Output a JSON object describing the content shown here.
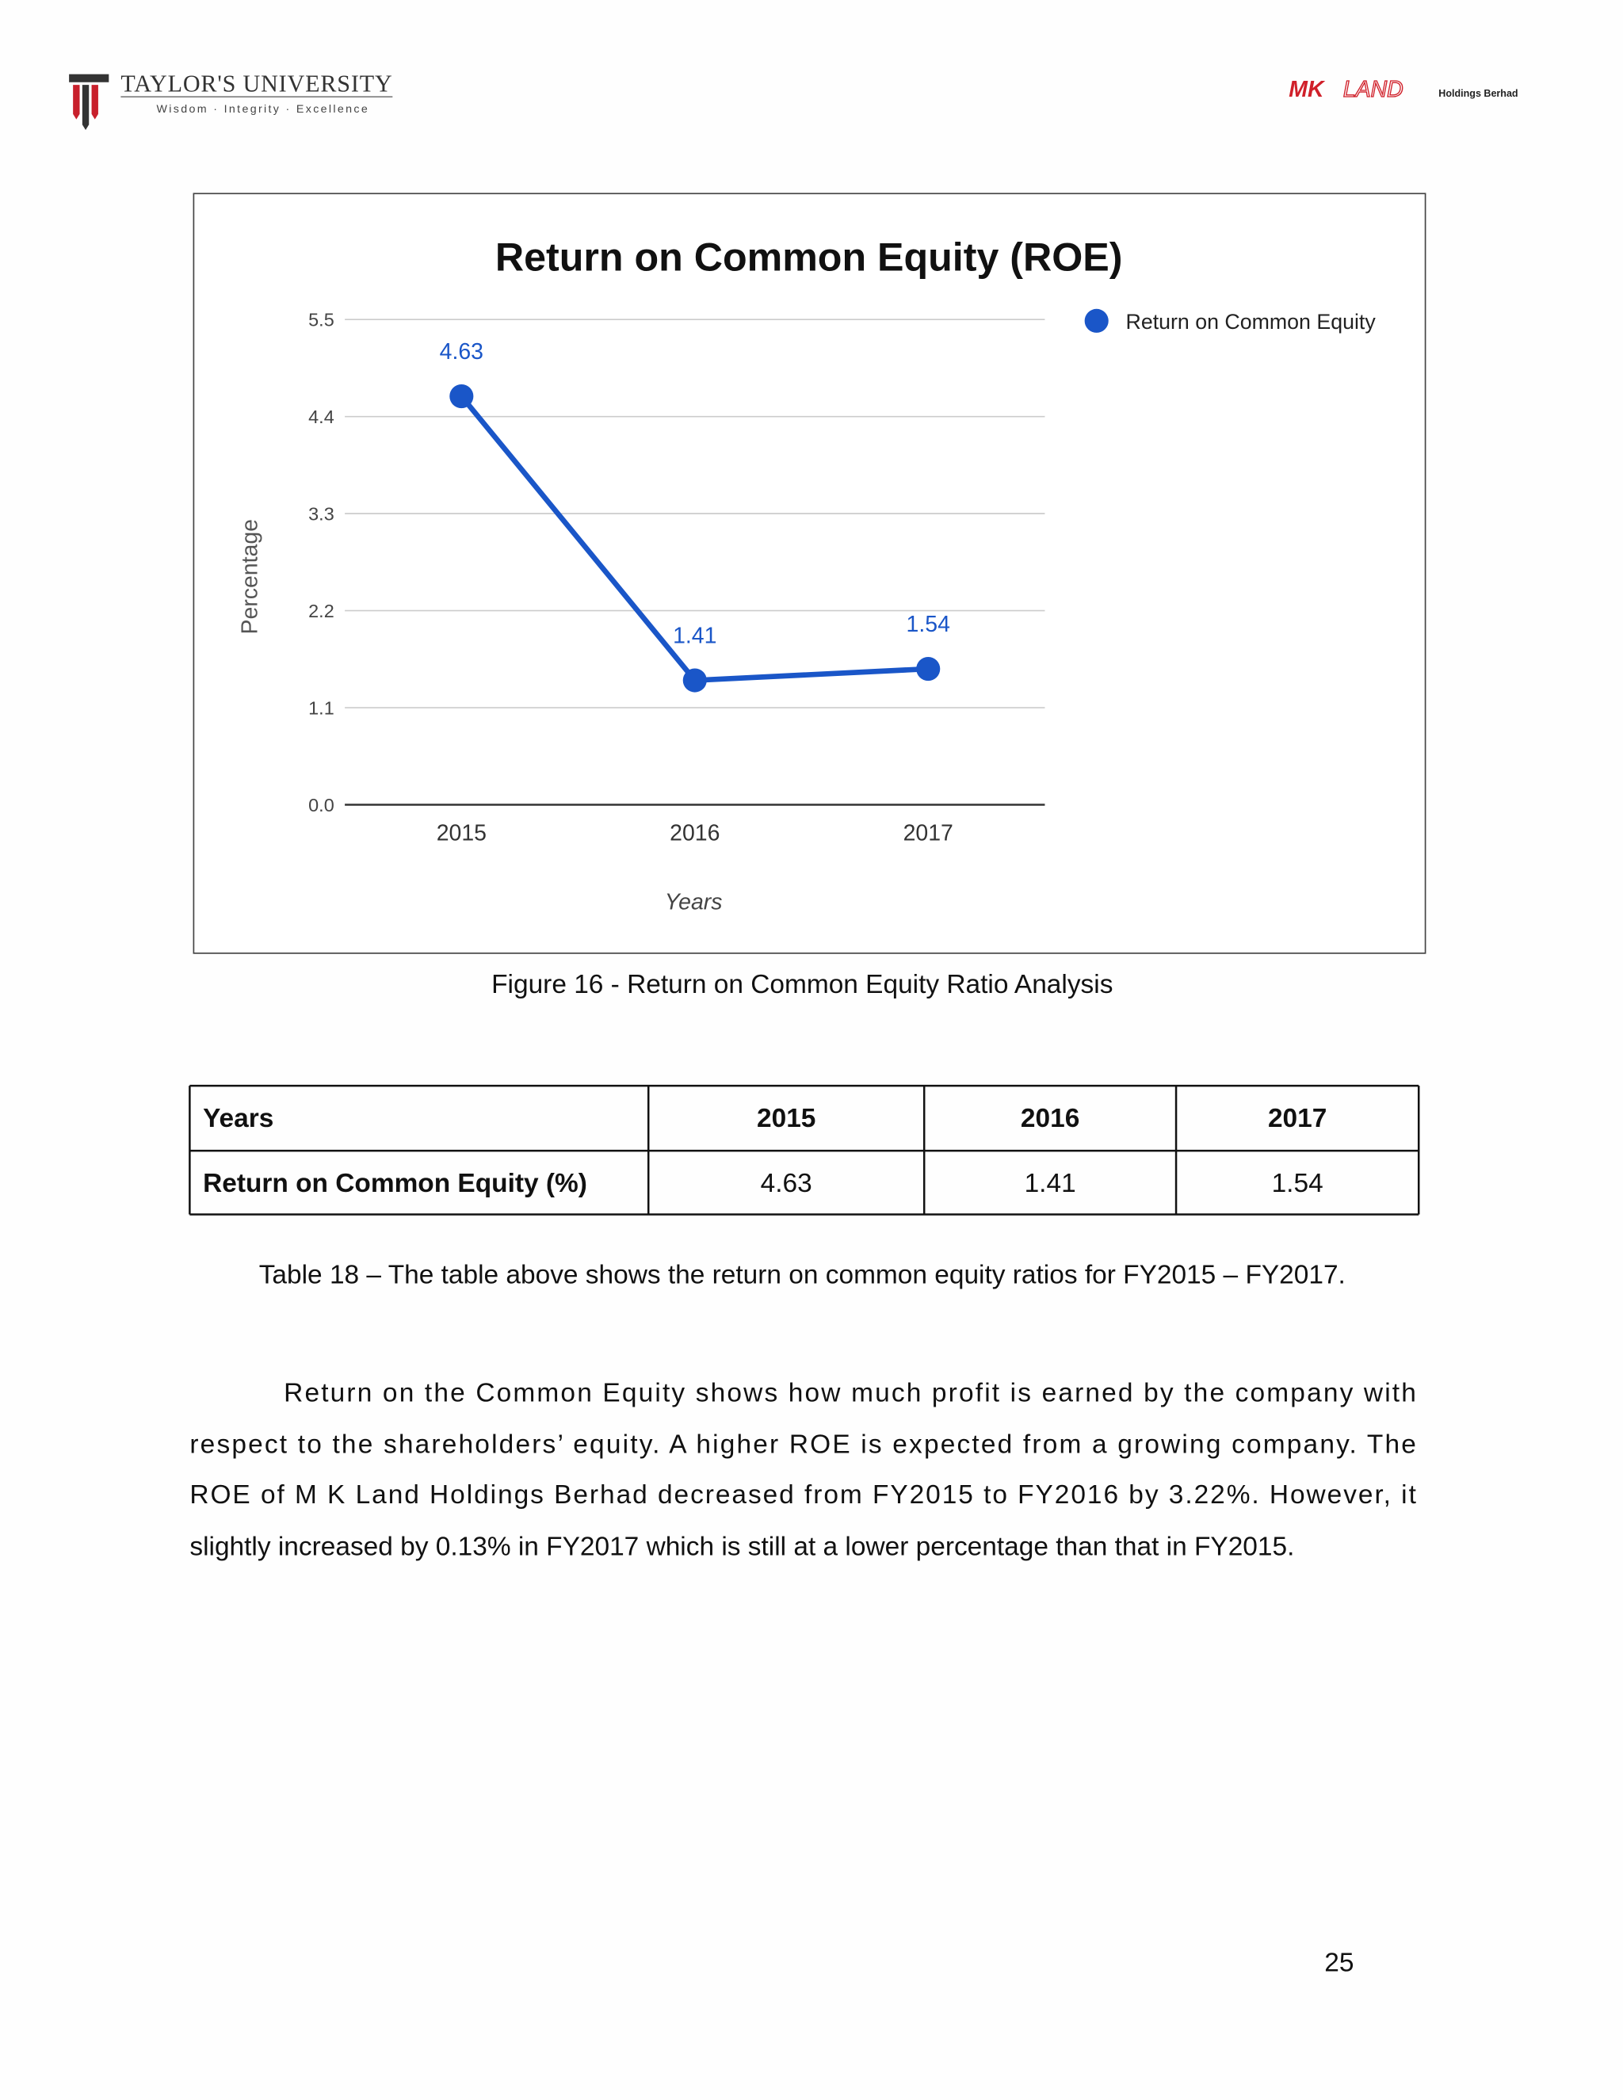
{
  "header": {
    "university": "TAYLOR'S UNIVERSITY",
    "motto": "Wisdom · Integrity · Excellence",
    "company_mk": "MK",
    "company_land": "LAND",
    "company_suffix": "Holdings Berhad"
  },
  "chart_data": {
    "type": "line",
    "title": "Return on Common Equity (ROE)",
    "x_label": "Years",
    "y_label": "Percentage",
    "categories": [
      "2015",
      "2016",
      "2017"
    ],
    "series": [
      {
        "name": "Return on Common Equity",
        "color": "#1a56c8",
        "values": [
          4.63,
          1.41,
          1.54
        ]
      }
    ],
    "ylim": [
      0,
      5.5
    ],
    "yticks": [
      {
        "value": 0,
        "label": "0.0"
      },
      1.1,
      2.2,
      3.3,
      4.4,
      5.5
    ],
    "grid": true,
    "legend": "right"
  },
  "figure_caption": "Figure 16 - Return on Common Equity Ratio Analysis",
  "table": {
    "rows": [
      [
        "Years",
        "2015",
        "2016",
        "2017"
      ],
      [
        "Return on Common Equity (%)",
        "4.63",
        "1.41",
        "1.54"
      ]
    ]
  },
  "table_caption": "Table 18 – The table above shows the return on common equity ratios for FY2015 – FY2017.",
  "paragraph": [
    "Return on the Common Equity shows how much profit is earned by the company with",
    "respect to the shareholders’ equity. A higher ROE is expected from a growing company. The",
    "ROE of M K Land Holdings Berhad decreased from FY2015 to FY2016 by 3.22%. However, it",
    "slightly increased by 0.13% in FY2017 which is still at a lower percentage than that in FY2015."
  ],
  "page_number": "25"
}
